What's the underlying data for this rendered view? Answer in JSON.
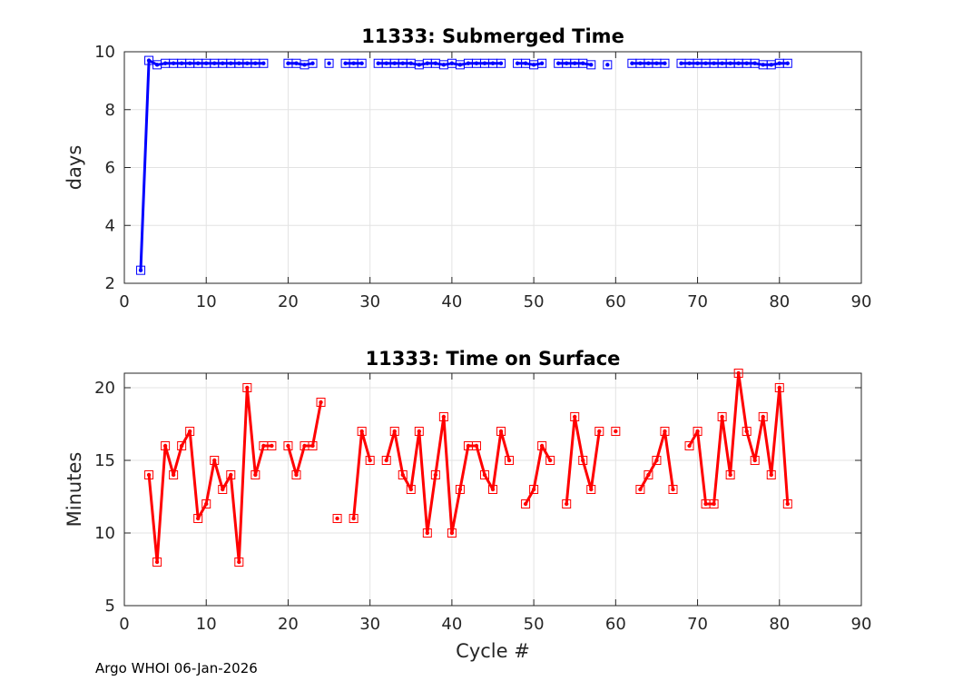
{
  "footer": "Argo WHOI 06-Jan-2026",
  "chart_data": [
    {
      "type": "line",
      "title": "11333: Submerged Time",
      "xlabel": "",
      "ylabel": "days",
      "xlim": [
        0,
        90
      ],
      "ylim": [
        2,
        10
      ],
      "xticks": [
        0,
        10,
        20,
        30,
        40,
        50,
        60,
        70,
        80,
        90
      ],
      "yticks": [
        2,
        4,
        6,
        8,
        10
      ],
      "grid": true,
      "line_color": "#0000ff",
      "marker": "square",
      "series": [
        {
          "x": [
            2,
            3,
            4,
            5,
            6,
            7,
            8,
            9,
            10,
            11,
            12,
            13,
            14,
            15,
            16,
            17,
            null,
            20,
            21,
            22,
            23,
            null,
            25,
            null,
            27,
            28,
            29,
            null,
            31,
            32,
            33,
            34,
            35,
            36,
            37,
            38,
            39,
            40,
            41,
            42,
            43,
            44,
            45,
            46,
            null,
            48,
            49,
            50,
            51,
            null,
            53,
            54,
            55,
            56,
            57,
            null,
            59,
            null,
            62,
            63,
            64,
            65,
            66,
            null,
            68,
            69,
            70,
            71,
            72,
            73,
            74,
            75,
            76,
            77,
            78,
            79,
            80,
            81
          ],
          "y": [
            2.45,
            9.7,
            9.55,
            9.6,
            9.6,
            9.6,
            9.6,
            9.6,
            9.6,
            9.6,
            9.6,
            9.6,
            9.6,
            9.6,
            9.6,
            9.6,
            null,
            9.6,
            9.6,
            9.55,
            9.6,
            null,
            9.6,
            null,
            9.6,
            9.6,
            9.6,
            null,
            9.6,
            9.6,
            9.6,
            9.6,
            9.6,
            9.55,
            9.6,
            9.6,
            9.55,
            9.6,
            9.55,
            9.6,
            9.6,
            9.6,
            9.6,
            9.6,
            null,
            9.6,
            9.6,
            9.55,
            9.6,
            null,
            9.6,
            9.6,
            9.6,
            9.6,
            9.55,
            null,
            9.55,
            null,
            9.6,
            9.6,
            9.6,
            9.6,
            9.6,
            null,
            9.6,
            9.6,
            9.6,
            9.6,
            9.6,
            9.6,
            9.6,
            9.6,
            9.6,
            9.6,
            9.55,
            9.55,
            9.6,
            9.6
          ]
        }
      ]
    },
    {
      "type": "line",
      "title": "11333: Time on Surface",
      "xlabel": "Cycle #",
      "ylabel": "Minutes",
      "xlim": [
        0,
        90
      ],
      "ylim": [
        5,
        21
      ],
      "xticks": [
        0,
        10,
        20,
        30,
        40,
        50,
        60,
        70,
        80,
        90
      ],
      "yticks": [
        5,
        10,
        15,
        20
      ],
      "grid": true,
      "line_color": "#ff0000",
      "marker": "square",
      "series": [
        {
          "x": [
            3,
            4,
            5,
            6,
            7,
            8,
            9,
            10,
            11,
            12,
            13,
            14,
            15,
            16,
            17,
            18,
            null,
            20,
            21,
            22,
            23,
            24,
            null,
            26,
            null,
            28,
            29,
            30,
            null,
            32,
            33,
            34,
            35,
            36,
            37,
            38,
            39,
            40,
            41,
            42,
            43,
            44,
            45,
            46,
            47,
            null,
            49,
            50,
            51,
            52,
            null,
            54,
            55,
            56,
            57,
            58,
            null,
            60,
            null,
            63,
            64,
            65,
            66,
            67,
            null,
            69,
            70,
            71,
            72,
            73,
            74,
            75,
            76,
            77,
            78,
            79,
            80,
            81
          ],
          "y": [
            14,
            8,
            16,
            14,
            16,
            17,
            11,
            12,
            15,
            13,
            14,
            8,
            20,
            14,
            16,
            16,
            null,
            16,
            14,
            16,
            16,
            19,
            null,
            11,
            null,
            11,
            17,
            15,
            null,
            15,
            17,
            14,
            13,
            17,
            10,
            14,
            18,
            10,
            13,
            16,
            16,
            14,
            13,
            17,
            15,
            null,
            12,
            13,
            16,
            15,
            null,
            12,
            18,
            15,
            13,
            17,
            null,
            17,
            null,
            13,
            14,
            15,
            17,
            13,
            null,
            16,
            17,
            12,
            12,
            18,
            14,
            21,
            17,
            15,
            18,
            14,
            20,
            12
          ]
        }
      ]
    }
  ]
}
